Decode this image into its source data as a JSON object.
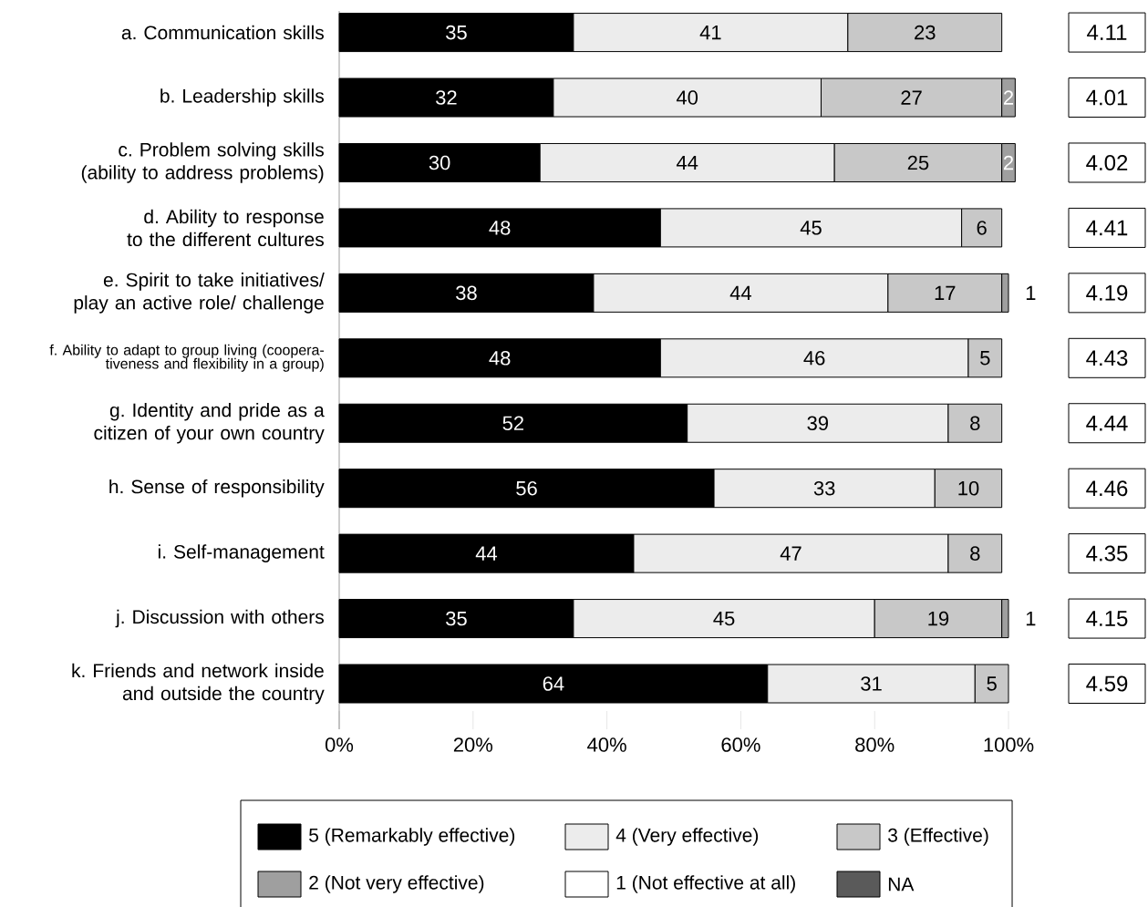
{
  "chart_data": {
    "type": "bar",
    "orientation": "horizontal",
    "stacked": true,
    "data_labels": true,
    "legend": "bottom",
    "grid": false,
    "categories": [
      "a. Communication skills",
      "b. Leadership skills",
      "c. Problem solving skills (ability to address problems)",
      "d. Ability to response to the different cultures",
      "e. Spirit to take initiatives/ play an active role/ challenge",
      "f. Ability to adapt to group living (coopera-tiveness and flexibility in a group)",
      "g. Identity and pride as a citizen of your own country",
      "h. Sense of responsibility",
      "i. Self-management",
      "j. Discussion with others",
      "k. Friends and network inside and outside the country"
    ],
    "xlim": [
      0,
      101
    ],
    "xticks": [
      {
        "value": 0,
        "label": "0%"
      },
      {
        "value": 20,
        "label": "20%"
      },
      {
        "value": 40,
        "label": "40%"
      },
      {
        "value": 60,
        "label": "60%"
      },
      {
        "value": 80,
        "label": "80%"
      },
      {
        "value": 100,
        "label": "100%"
      }
    ],
    "series": [
      {
        "name": "5 (Remarkably effective)",
        "color": "#000000",
        "values": [
          35,
          32,
          30,
          48,
          38,
          48,
          52,
          56,
          44,
          35,
          64
        ]
      },
      {
        "name": "4 (Very effective)",
        "color": "#ececec",
        "values": [
          41,
          40,
          44,
          45,
          44,
          46,
          39,
          33,
          47,
          45,
          31
        ]
      },
      {
        "name": "3 (Effective)",
        "color": "#c8c8c8",
        "values": [
          23,
          27,
          25,
          6,
          17,
          5,
          8,
          10,
          8,
          19,
          5
        ]
      },
      {
        "name": "2 (Not very effective)",
        "color": "#9f9f9f",
        "values": [
          null,
          2,
          2,
          null,
          1,
          null,
          null,
          null,
          null,
          1,
          null
        ]
      },
      {
        "name": "1 (Not effective at all)",
        "color": "#ffffff",
        "values": [
          null,
          null,
          null,
          null,
          null,
          null,
          null,
          null,
          null,
          null,
          null
        ]
      },
      {
        "name": "NA",
        "color": "#5a5a5a",
        "values": [
          null,
          null,
          null,
          null,
          null,
          null,
          null,
          null,
          null,
          null,
          null
        ]
      }
    ],
    "annotations": [
      "4.11",
      "4.01",
      "4.02",
      "4.41",
      "4.19",
      "4.43",
      "4.44",
      "4.46",
      "4.35",
      "4.15",
      "4.59"
    ]
  }
}
